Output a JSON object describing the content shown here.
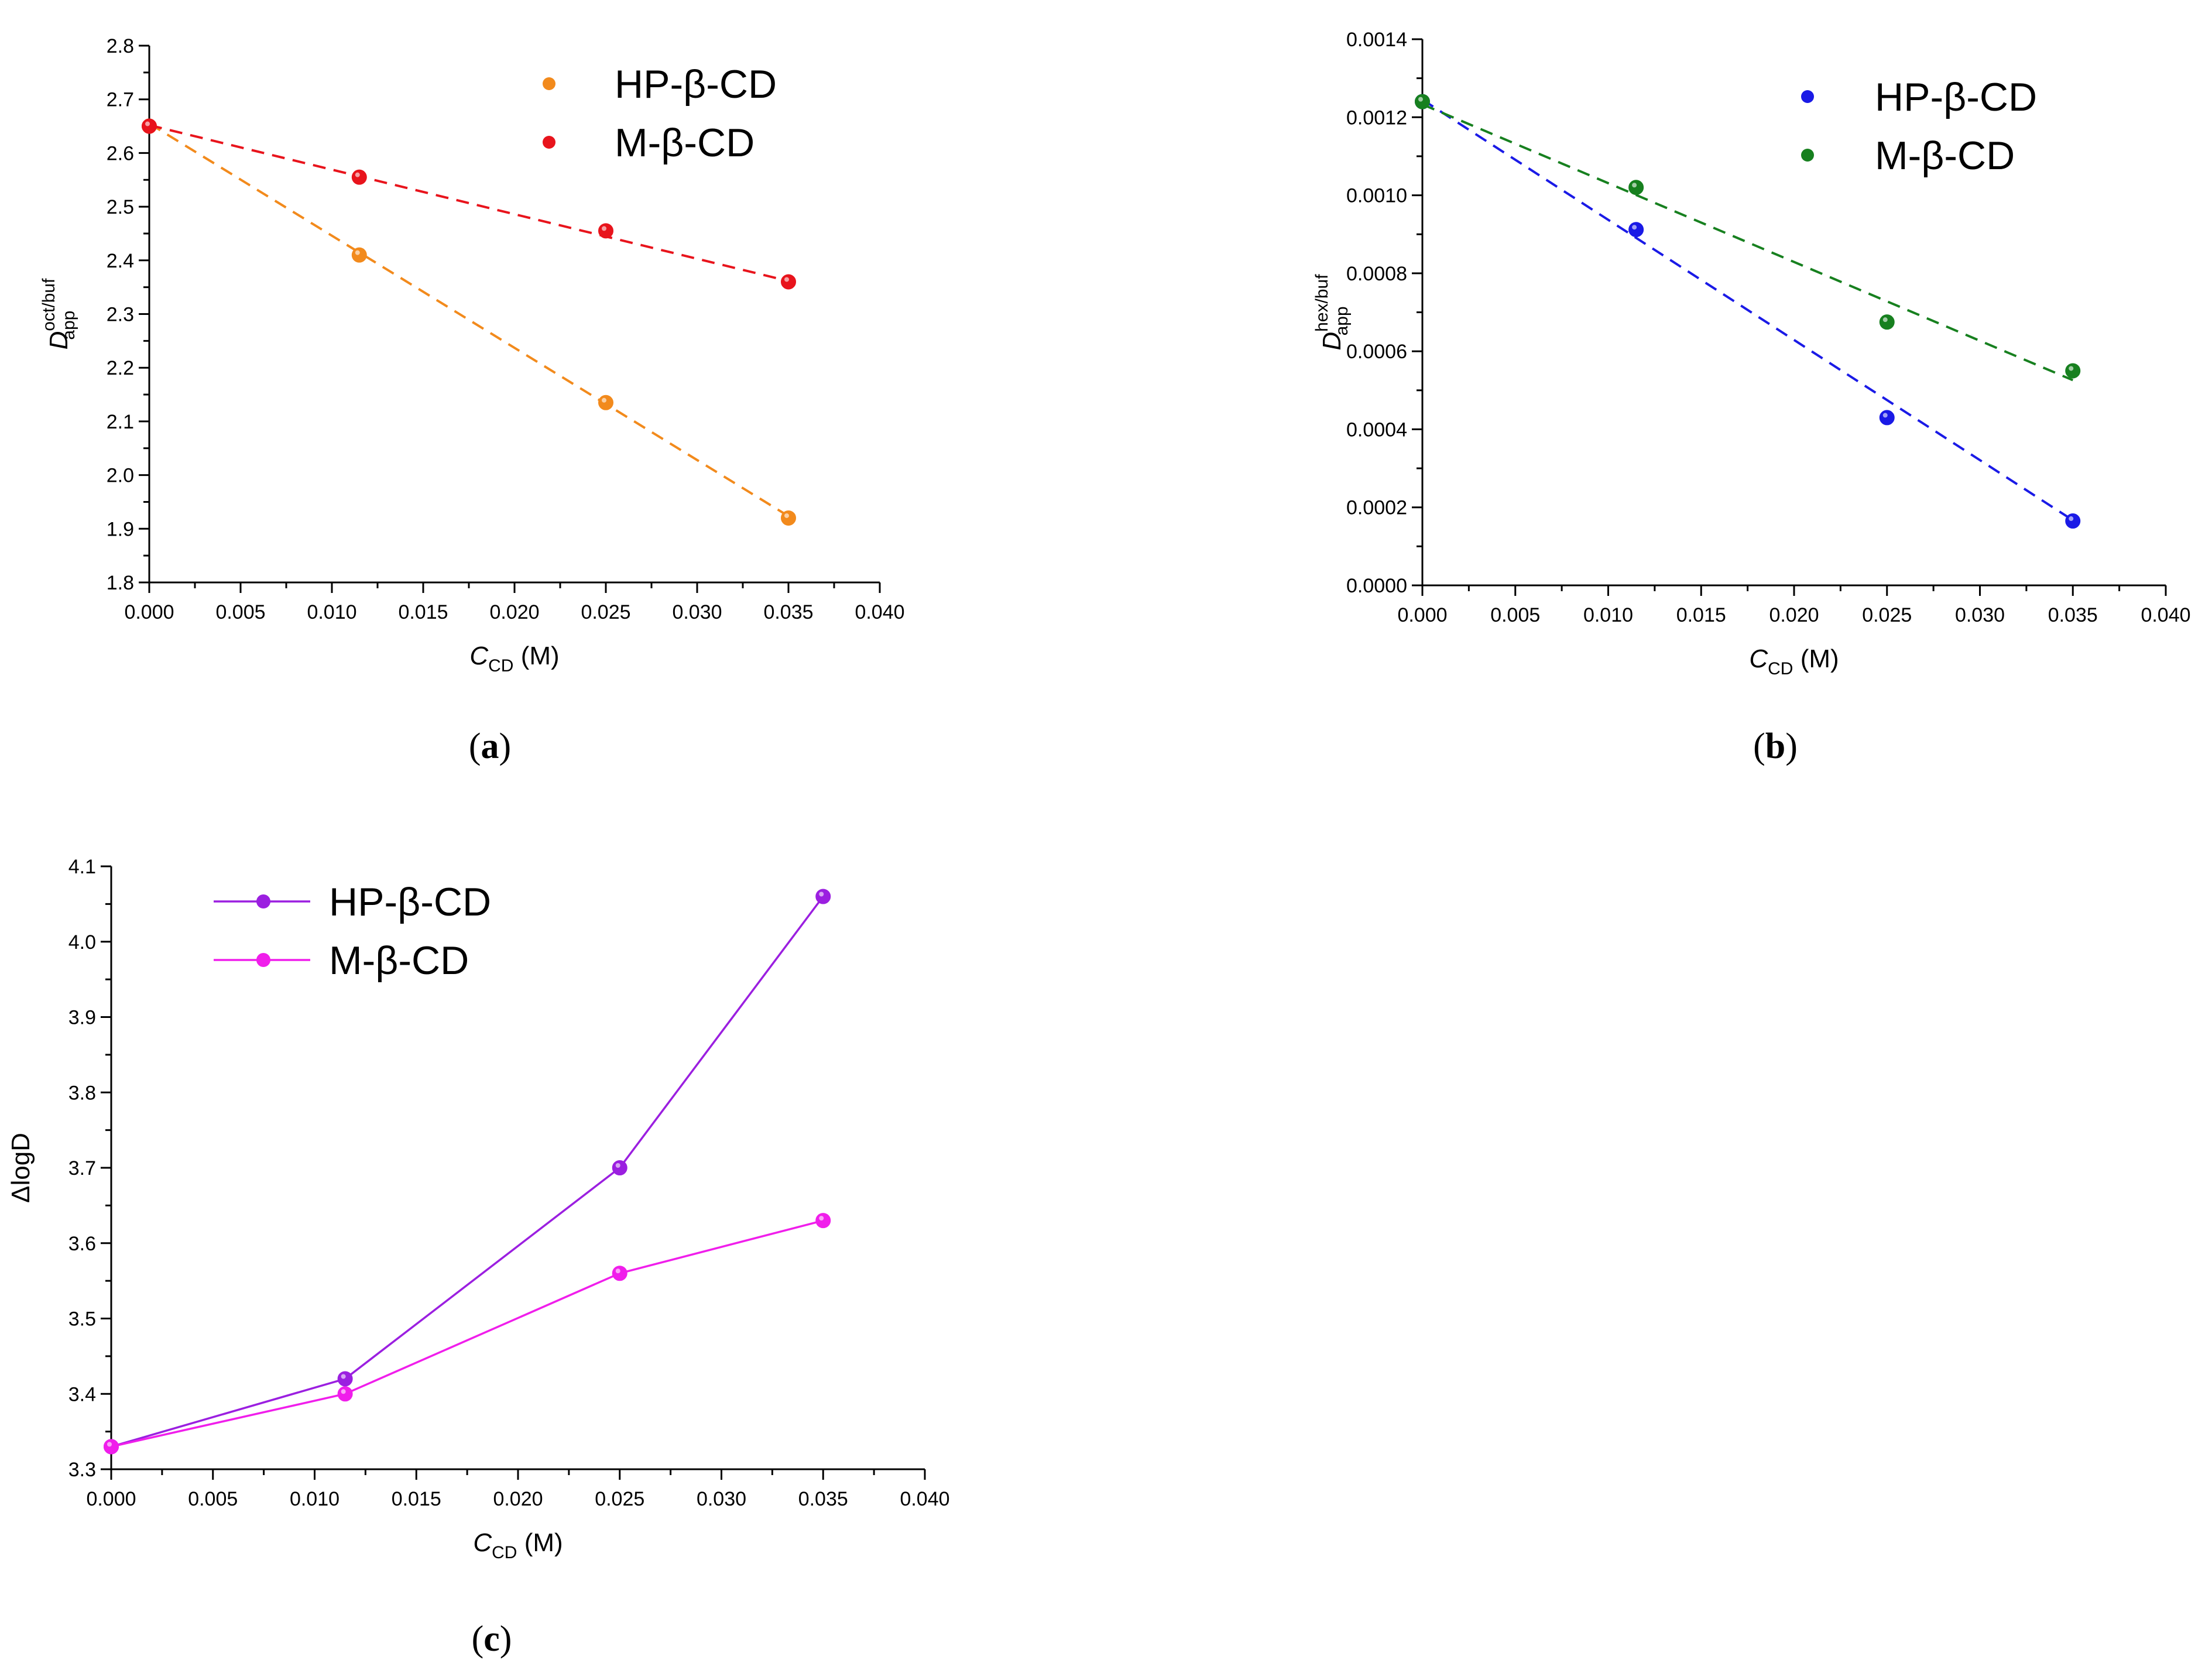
{
  "chart_data": [
    {
      "type": "scatter",
      "panel_label": "a",
      "title": "",
      "xlabel": {
        "base": "C",
        "sub": "CD",
        "unit": " (M)"
      },
      "ylabel": {
        "base": "D",
        "sub": "app",
        "sup": "oct/buf"
      },
      "xlim": [
        0,
        0.04
      ],
      "ylim": [
        1.8,
        2.8
      ],
      "xticks": [
        "0.000",
        "0.005",
        "0.010",
        "0.015",
        "0.020",
        "0.025",
        "0.030",
        "0.035",
        "0.040"
      ],
      "yticks": [
        "1.8",
        "1.9",
        "2.0",
        "2.1",
        "2.2",
        "2.3",
        "2.4",
        "2.5",
        "2.6",
        "2.7",
        "2.8"
      ],
      "grid": false,
      "legend_position": "top-right",
      "series": [
        {
          "name": "HP-β-CD",
          "color": "#F28A1C",
          "x": [
            0,
            0.0115,
            0.025,
            0.035
          ],
          "y": [
            2.65,
            2.41,
            2.135,
            1.92
          ],
          "fit": {
            "intercept": 2.655,
            "slope": -20.9
          }
        },
        {
          "name": "M-β-CD",
          "color": "#E8141C",
          "x": [
            0,
            0.0115,
            0.025,
            0.035
          ],
          "y": [
            2.65,
            2.555,
            2.455,
            2.36
          ],
          "fit": {
            "intercept": 2.652,
            "slope": -8.3
          }
        }
      ]
    },
    {
      "type": "scatter",
      "panel_label": "b",
      "title": "",
      "xlabel": {
        "base": "C",
        "sub": "CD",
        "unit": " (M)"
      },
      "ylabel": {
        "base": "D",
        "sub": "app",
        "sup": "hex/buf"
      },
      "xlim": [
        0,
        0.04
      ],
      "ylim": [
        0,
        0.0014
      ],
      "xticks": [
        "0.000",
        "0.005",
        "0.010",
        "0.015",
        "0.020",
        "0.025",
        "0.030",
        "0.035",
        "0.040"
      ],
      "yticks": [
        "0.0000",
        "0.0002",
        "0.0004",
        "0.0006",
        "0.0008",
        "0.0010",
        "0.0012",
        "0.0014"
      ],
      "grid": false,
      "legend_position": "top-right",
      "series": [
        {
          "name": "HP-β-CD",
          "color": "#1A1AE6",
          "x": [
            0,
            0.0115,
            0.025,
            0.035
          ],
          "y": [
            0.00124,
            0.000912,
            0.00043,
            0.000165
          ],
          "fit": {
            "intercept": 0.001245,
            "slope": -0.0308
          }
        },
        {
          "name": "M-β-CD",
          "color": "#17801F",
          "x": [
            0,
            0.0115,
            0.025,
            0.035
          ],
          "y": [
            0.00124,
            0.00102,
            0.000675,
            0.00055
          ],
          "fit": {
            "intercept": 0.001233,
            "slope": -0.0202
          }
        }
      ]
    },
    {
      "type": "line",
      "panel_label": "c",
      "title": "",
      "xlabel": {
        "base": "C",
        "sub": "CD",
        "unit": " (M)"
      },
      "ylabel": {
        "base": "ΔlogD"
      },
      "xlim": [
        0,
        0.04
      ],
      "ylim": [
        3.3,
        4.1
      ],
      "xticks": [
        "0.000",
        "0.005",
        "0.010",
        "0.015",
        "0.020",
        "0.025",
        "0.030",
        "0.035",
        "0.040"
      ],
      "yticks": [
        "3.3",
        "3.4",
        "3.5",
        "3.6",
        "3.7",
        "3.8",
        "3.9",
        "4.0",
        "4.1"
      ],
      "grid": false,
      "legend_position": "top-left",
      "series": [
        {
          "name": "HP-β-CD",
          "color": "#9B1FE0",
          "x": [
            0,
            0.0115,
            0.025,
            0.035
          ],
          "y": [
            3.33,
            3.42,
            3.7,
            4.06
          ]
        },
        {
          "name": "M-β-CD",
          "color": "#F01EEB",
          "x": [
            0,
            0.0115,
            0.025,
            0.035
          ],
          "y": [
            3.33,
            3.4,
            3.56,
            3.63
          ]
        }
      ]
    }
  ]
}
